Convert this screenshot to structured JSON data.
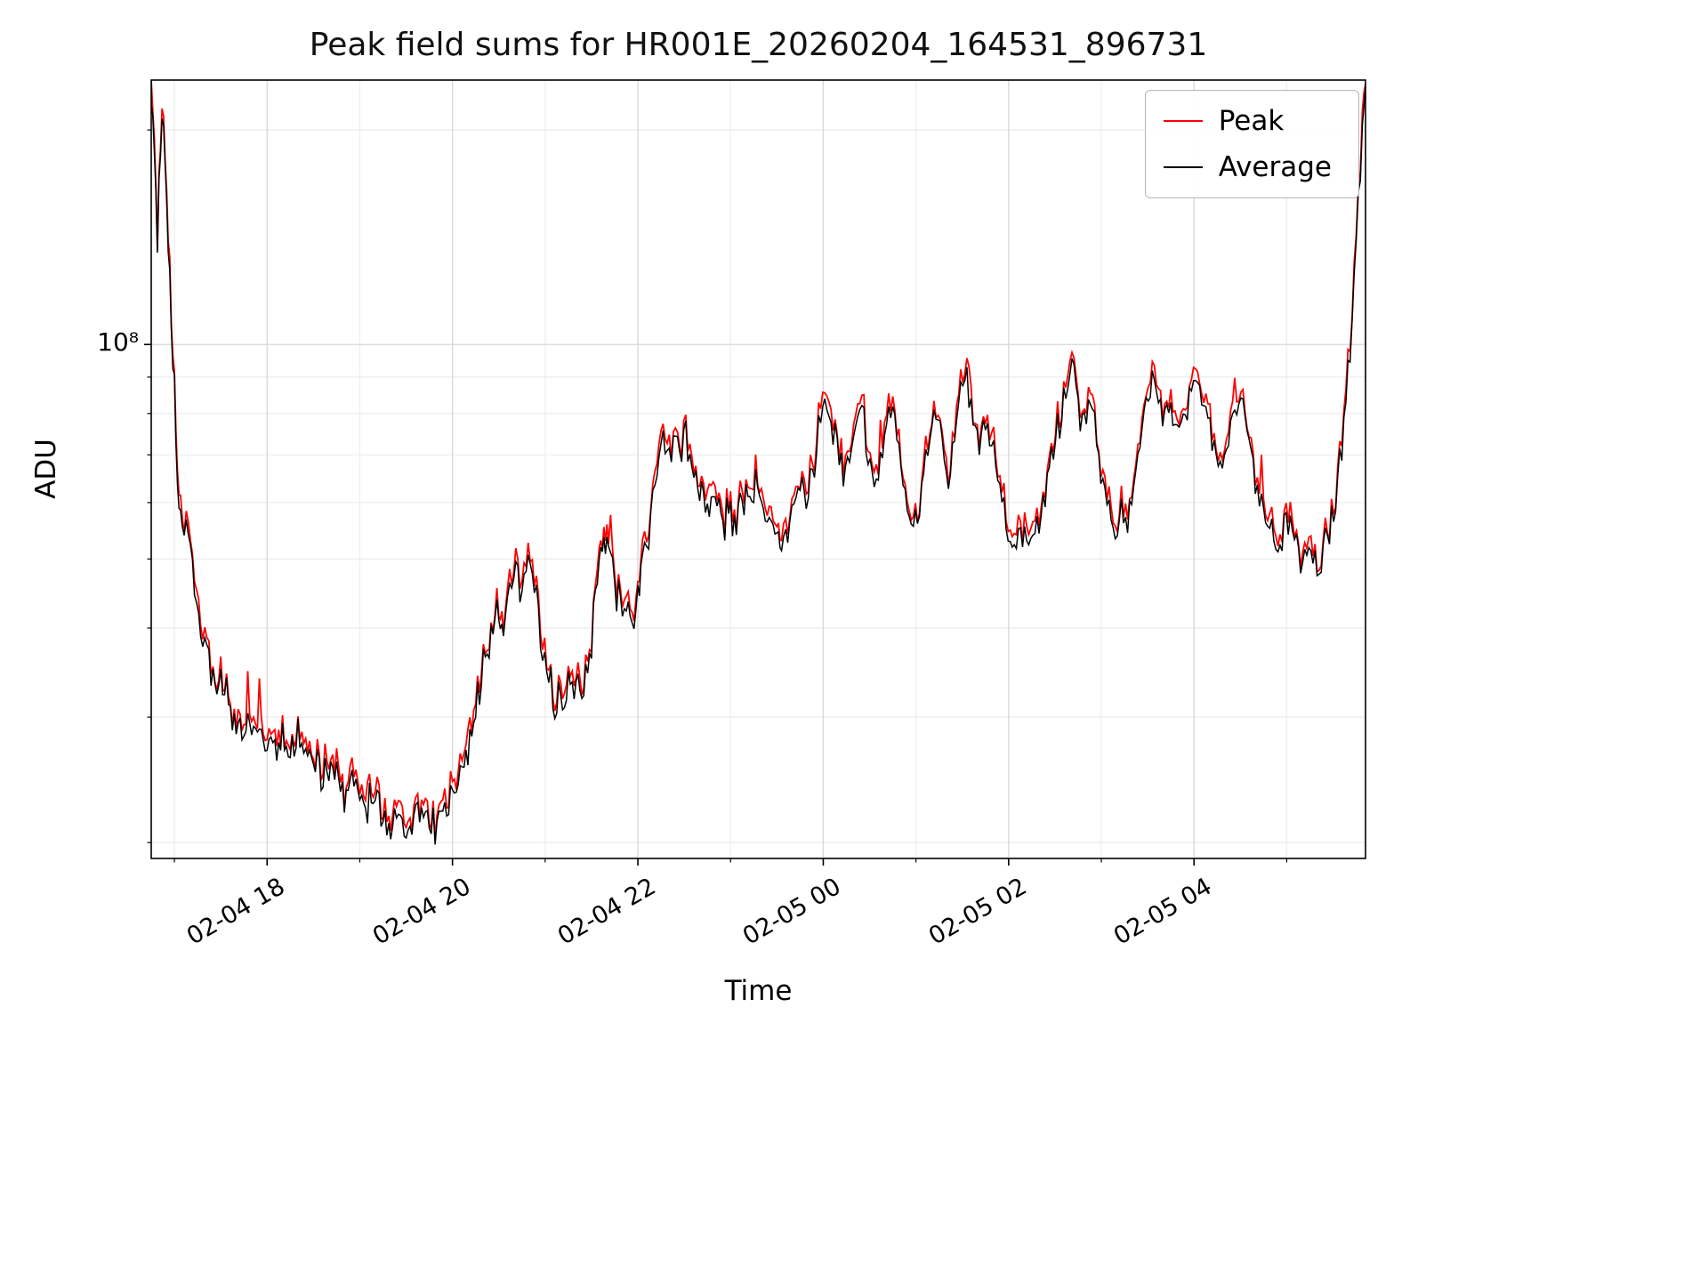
{
  "page": {
    "title": "Peak field sums for HR001E_20260204_164531_896731"
  },
  "chart_data": {
    "type": "line",
    "title": "Peak field sums for HR001E_20260204_164531_896731",
    "xlabel": "Time",
    "ylabel": "ADU",
    "y_scale": "log",
    "grid": true,
    "legend_position": "upper right",
    "y_tick_label": "10⁸",
    "y_tick_value": 100000000,
    "y_minor_tick_values_1e7": [
      2,
      3,
      4,
      5,
      6,
      7,
      8,
      9,
      20
    ],
    "ylim": [
      19000000,
      235000000
    ],
    "x_range_hours": [
      0,
      13.1
    ],
    "x_start": "02-04 16:45",
    "x_ticks": [
      {
        "label": "02-04 18",
        "hours": 1.25
      },
      {
        "label": "02-04 20",
        "hours": 3.25
      },
      {
        "label": "02-04 22",
        "hours": 5.25
      },
      {
        "label": "02-05 00",
        "hours": 7.25
      },
      {
        "label": "02-05 02",
        "hours": 9.25
      },
      {
        "label": "02-05 04",
        "hours": 11.25
      }
    ],
    "x_minor_first_hour": 0.25,
    "x_minor_step_hours": 1,
    "value_scale": 10000000,
    "series": [
      {
        "name": "Peak",
        "color": "#ff0000"
      },
      {
        "name": "Average",
        "color": "#000000"
      }
    ],
    "envelope_t_min_value_1e7": [
      [
        0,
        23.0
      ],
      [
        2,
        20.0
      ],
      [
        4,
        14.0
      ],
      [
        6,
        19.5
      ],
      [
        8,
        20.5
      ],
      [
        10,
        16.0
      ],
      [
        12,
        12.0
      ],
      [
        14,
        9.5
      ],
      [
        16,
        7.5
      ],
      [
        18,
        6.0
      ],
      [
        20,
        5.6
      ],
      [
        24,
        5.5
      ],
      [
        28,
        4.6
      ],
      [
        32,
        4.0
      ],
      [
        36,
        3.7
      ],
      [
        40,
        3.45
      ],
      [
        45,
        3.3
      ],
      [
        50,
        3.15
      ],
      [
        55,
        3.0
      ],
      [
        60,
        2.95
      ],
      [
        65,
        2.85
      ],
      [
        70,
        2.9
      ],
      [
        75,
        2.75
      ],
      [
        80,
        2.8
      ],
      [
        85,
        2.75
      ],
      [
        90,
        2.7
      ],
      [
        95,
        2.85
      ],
      [
        100,
        2.7
      ],
      [
        105,
        2.55
      ],
      [
        110,
        2.5
      ],
      [
        115,
        2.6
      ],
      [
        120,
        2.45
      ],
      [
        125,
        2.35
      ],
      [
        130,
        2.4
      ],
      [
        135,
        2.3
      ],
      [
        140,
        2.25
      ],
      [
        145,
        2.3
      ],
      [
        150,
        2.2
      ],
      [
        155,
        2.15
      ],
      [
        160,
        2.2
      ],
      [
        165,
        2.1
      ],
      [
        170,
        2.15
      ],
      [
        175,
        2.2
      ],
      [
        180,
        2.1
      ],
      [
        185,
        2.15
      ],
      [
        190,
        2.2
      ],
      [
        195,
        2.3
      ],
      [
        200,
        2.5
      ],
      [
        205,
        2.7
      ],
      [
        210,
        3.0
      ],
      [
        215,
        3.5
      ],
      [
        220,
        3.9
      ],
      [
        225,
        4.2
      ],
      [
        228,
        4.0
      ],
      [
        232,
        4.4
      ],
      [
        236,
        4.8
      ],
      [
        240,
        4.4
      ],
      [
        244,
        5.0
      ],
      [
        248,
        4.5
      ],
      [
        252,
        3.9
      ],
      [
        256,
        3.4
      ],
      [
        260,
        3.2
      ],
      [
        265,
        3.1
      ],
      [
        270,
        3.25
      ],
      [
        275,
        3.15
      ],
      [
        280,
        3.3
      ],
      [
        285,
        3.9
      ],
      [
        290,
        4.8
      ],
      [
        293,
        5.5
      ],
      [
        296,
        5.2
      ],
      [
        300,
        4.6
      ],
      [
        305,
        4.3
      ],
      [
        310,
        4.25
      ],
      [
        315,
        4.4
      ],
      [
        318,
        5.0
      ],
      [
        322,
        5.5
      ],
      [
        326,
        6.6
      ],
      [
        330,
        7.2
      ],
      [
        334,
        7.0
      ],
      [
        338,
        7.4
      ],
      [
        342,
        7.1
      ],
      [
        346,
        7.3
      ],
      [
        350,
        6.8
      ],
      [
        355,
        6.3
      ],
      [
        360,
        6.1
      ],
      [
        365,
        5.9
      ],
      [
        370,
        5.7
      ],
      [
        375,
        5.6
      ],
      [
        380,
        5.75
      ],
      [
        385,
        6.1
      ],
      [
        390,
        6.3
      ],
      [
        395,
        6.0
      ],
      [
        400,
        5.6
      ],
      [
        405,
        5.3
      ],
      [
        408,
        5.15
      ],
      [
        412,
        5.5
      ],
      [
        416,
        6.0
      ],
      [
        420,
        6.3
      ],
      [
        424,
        6.0
      ],
      [
        428,
        6.6
      ],
      [
        432,
        7.5
      ],
      [
        436,
        8.3
      ],
      [
        440,
        7.8
      ],
      [
        444,
        7.2
      ],
      [
        448,
        6.6
      ],
      [
        452,
        7.0
      ],
      [
        456,
        7.8
      ],
      [
        460,
        8.2
      ],
      [
        464,
        7.0
      ],
      [
        468,
        6.2
      ],
      [
        472,
        6.8
      ],
      [
        476,
        8.0
      ],
      [
        480,
        8.3
      ],
      [
        484,
        7.2
      ],
      [
        488,
        6.3
      ],
      [
        492,
        5.6
      ],
      [
        496,
        5.9
      ],
      [
        500,
        6.6
      ],
      [
        504,
        7.6
      ],
      [
        508,
        8.0
      ],
      [
        512,
        7.2
      ],
      [
        516,
        6.4
      ],
      [
        520,
        7.4
      ],
      [
        524,
        8.6
      ],
      [
        528,
        9.0
      ],
      [
        532,
        8.0
      ],
      [
        536,
        7.2
      ],
      [
        540,
        7.6
      ],
      [
        544,
        7.0
      ],
      [
        548,
        6.4
      ],
      [
        552,
        5.9
      ],
      [
        556,
        5.3
      ],
      [
        560,
        5.15
      ],
      [
        564,
        5.4
      ],
      [
        568,
        5.2
      ],
      [
        572,
        5.5
      ],
      [
        576,
        6.0
      ],
      [
        580,
        6.6
      ],
      [
        584,
        7.2
      ],
      [
        588,
        7.8
      ],
      [
        592,
        8.4
      ],
      [
        596,
        9.4
      ],
      [
        600,
        8.2
      ],
      [
        604,
        7.6
      ],
      [
        608,
        8.0
      ],
      [
        612,
        7.2
      ],
      [
        616,
        6.4
      ],
      [
        620,
        5.8
      ],
      [
        624,
        5.4
      ],
      [
        628,
        5.9
      ],
      [
        632,
        5.5
      ],
      [
        636,
        6.2
      ],
      [
        640,
        7.4
      ],
      [
        644,
        8.2
      ],
      [
        648,
        8.8
      ],
      [
        652,
        8.2
      ],
      [
        656,
        7.8
      ],
      [
        660,
        8.0
      ],
      [
        664,
        7.4
      ],
      [
        668,
        7.9
      ],
      [
        672,
        8.6
      ],
      [
        676,
        9.2
      ],
      [
        680,
        8.4
      ],
      [
        684,
        7.6
      ],
      [
        688,
        7.0
      ],
      [
        692,
        6.6
      ],
      [
        696,
        7.2
      ],
      [
        700,
        7.8
      ],
      [
        704,
        8.4
      ],
      [
        708,
        7.8
      ],
      [
        712,
        7.0
      ],
      [
        716,
        6.2
      ],
      [
        720,
        5.8
      ],
      [
        724,
        5.5
      ],
      [
        728,
        5.2
      ],
      [
        732,
        5.4
      ],
      [
        736,
        5.6
      ],
      [
        740,
        5.3
      ],
      [
        744,
        5.1
      ],
      [
        748,
        5.0
      ],
      [
        752,
        5.2
      ],
      [
        756,
        5.0
      ],
      [
        760,
        5.3
      ],
      [
        764,
        5.6
      ],
      [
        768,
        6.2
      ],
      [
        772,
        7.5
      ],
      [
        776,
        10.0
      ],
      [
        780,
        14.0
      ],
      [
        784,
        20.0
      ],
      [
        786,
        23.0
      ]
    ],
    "peak_outliers": [
      {
        "t_min": 70,
        "value_1e7": 3.4
      },
      {
        "t_min": 719,
        "value_1e7": 7.0
      }
    ]
  }
}
